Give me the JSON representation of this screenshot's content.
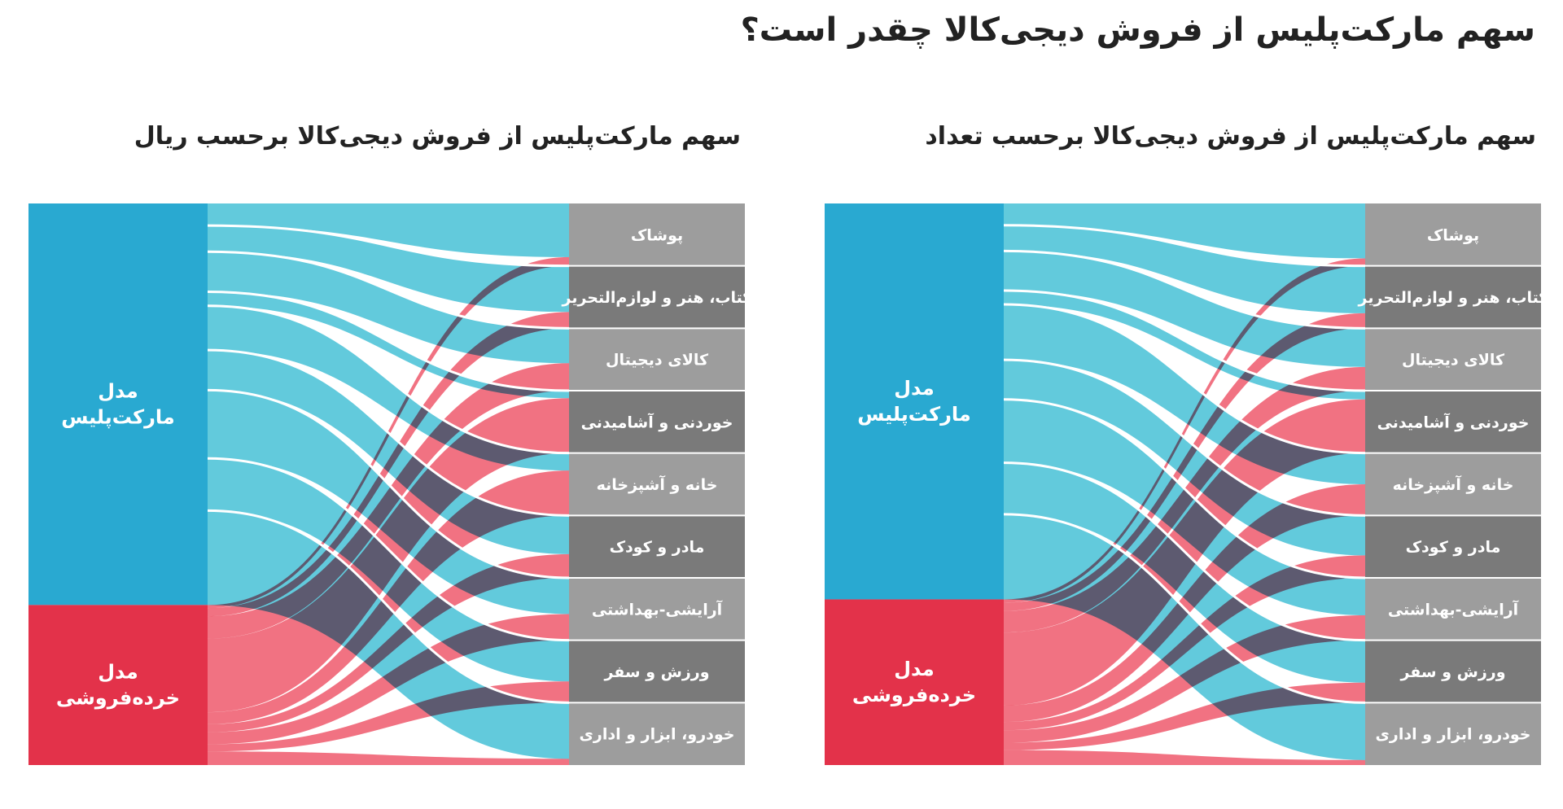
{
  "page": {
    "title": "سهم مارکت‌پلیس از فروش دیجی‌کالا چقدر است؟"
  },
  "colors": {
    "marketplace": "#29a9d1",
    "marketplace_flow": "#55c6d9",
    "retail": "#e3324a",
    "retail_flow": "#ee5366",
    "overlap": "#4a4156",
    "category_light": "#9d9d9d",
    "category_dark": "#7a7a7a"
  },
  "chart_data": [
    {
      "type": "sankey",
      "title": "سهم مارکت‌پلیس از فروش دیجی‌کالا برحسب ریال",
      "sources": [
        {
          "name": "مدل مارکت‌پلیس",
          "lines": [
            "مدل",
            "مارکت‌پلیس"
          ],
          "share": 0.715
        },
        {
          "name": "مدل خرده‌فروشی",
          "lines": [
            "مدل",
            "خرده‌فروشی"
          ],
          "share": 0.285
        }
      ],
      "categories": [
        "پوشاک",
        "کتاب، هنر و لوازم‌التحریر",
        "کالای دیجیتال",
        "خوردنی و آشامیدنی",
        "خانه و آشپزخانه",
        "مادر و کودک",
        "آرایشی-بهداشتی",
        "ورزش و سفر",
        "خودرو، ابزار و اداری"
      ],
      "marketplace_share": [
        0.86,
        0.74,
        0.56,
        0.12,
        0.28,
        0.62,
        0.58,
        0.66,
        0.9
      ],
      "marketplace_weight": [
        0.055,
        0.065,
        0.1,
        0.035,
        0.11,
        0.1,
        0.17,
        0.13,
        0.235
      ],
      "retail_weight": [
        0.02,
        0.05,
        0.14,
        0.46,
        0.075,
        0.05,
        0.075,
        0.045,
        0.085
      ]
    },
    {
      "type": "sankey",
      "title": "سهم مارکت‌پلیس از فروش دیجی‌کالا برحسب تعداد",
      "sources": [
        {
          "name": "مدل مارکت‌پلیس",
          "lines": [
            "مدل",
            "مارکت‌پلیس"
          ],
          "share": 0.705
        },
        {
          "name": "مدل خرده‌فروشی",
          "lines": [
            "مدل",
            "خرده‌فروشی"
          ],
          "share": 0.295
        }
      ],
      "categories": [
        "پوشاک",
        "کتاب، هنر و لوازم‌التحریر",
        "کالای دیجیتال",
        "خوردنی و آشامیدنی",
        "خانه و آشپزخانه",
        "مادر و کودک",
        "آرایشی-بهداشتی",
        "ورزش و سفر",
        "خودرو، ابزار و اداری"
      ],
      "marketplace_share": [
        0.88,
        0.76,
        0.62,
        0.14,
        0.5,
        0.64,
        0.6,
        0.68,
        0.92
      ],
      "marketplace_weight": [
        0.055,
        0.065,
        0.1,
        0.035,
        0.14,
        0.1,
        0.16,
        0.13,
        0.215
      ],
      "retail_weight": [
        0.02,
        0.05,
        0.13,
        0.44,
        0.1,
        0.05,
        0.075,
        0.045,
        0.09
      ]
    }
  ]
}
